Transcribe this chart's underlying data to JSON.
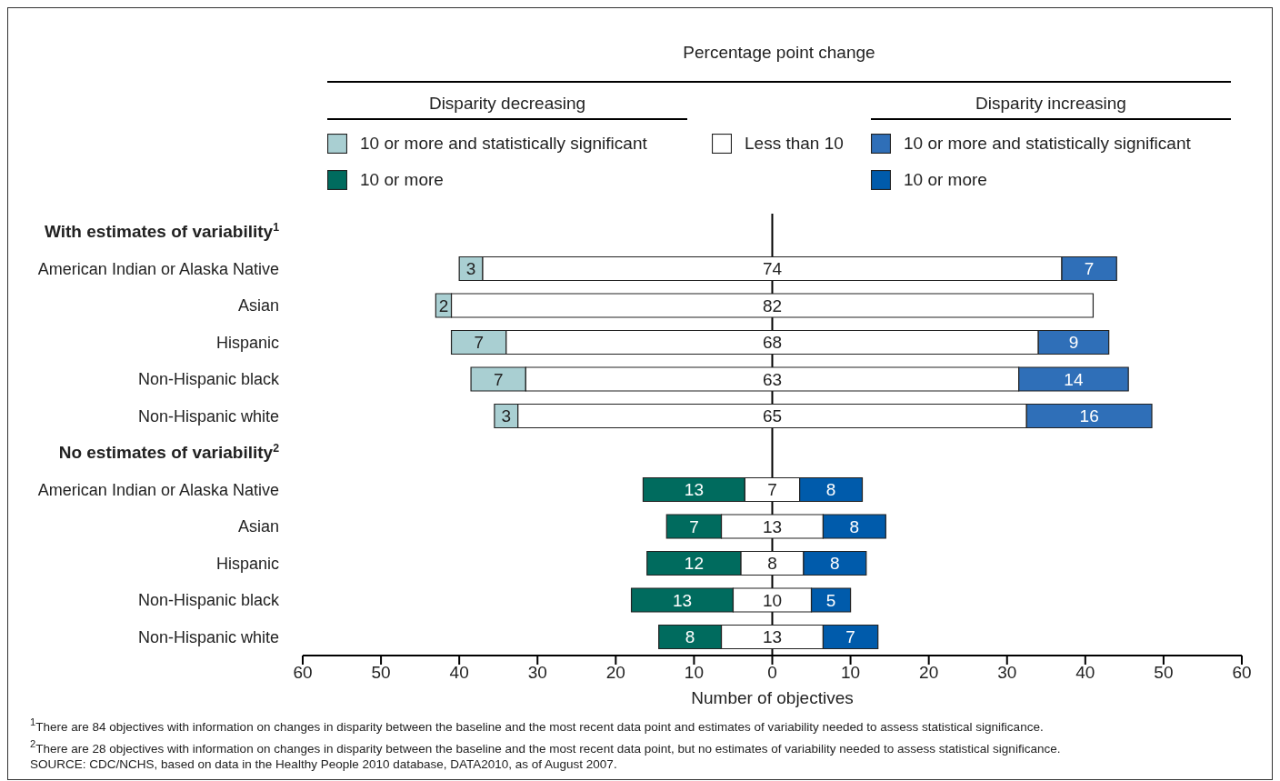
{
  "chart_data": {
    "type": "bar",
    "orientation": "horizontal",
    "legend_title": "Percentage point change",
    "legend": "top",
    "categories": [
      "With estimates of variability$^{1}$",
      "American Indian or Alaska Native",
      "Asian",
      "Hispanic",
      "Non-Hispanic black",
      "Non-Hispanic white",
      "No estimates of variability$^{2}$",
      "American Indian or Alaska Native",
      "Asian",
      "Hispanic",
      "Non-Hispanic black",
      "Non-Hispanic white"
    ],
    "series": [
      {
        "name": "10 or more and statistically significant",
        "color": "#a9cfd2",
        "values": [
          null,
          3,
          2,
          7,
          7,
          3,
          null,
          null,
          null,
          null,
          null,
          null
        ],
        "base": [
          null,
          -40,
          -43,
          -41,
          -38.5,
          -35.5,
          null,
          null,
          null,
          null,
          null,
          null
        ]
      },
      {
        "name": "10 or more",
        "color": "#006b5e",
        "values": [
          null,
          null,
          null,
          null,
          null,
          null,
          null,
          13,
          7,
          12,
          13,
          8
        ],
        "base": [
          null,
          null,
          null,
          null,
          null,
          null,
          null,
          -16.5,
          -13.5,
          -16,
          -18,
          -14.5
        ]
      },
      {
        "name": "Less than 10",
        "color": "#ffffff",
        "values": [
          null,
          74,
          82,
          68,
          63,
          65,
          null,
          7,
          13,
          8,
          10,
          13
        ],
        "base": [
          null,
          -37,
          -41,
          -34,
          -31.5,
          -32.5,
          null,
          -3.5,
          -6.5,
          -4,
          -5,
          -6.5
        ]
      },
      {
        "name": "10 or more and statistically significant",
        "color": "#2f6fb8",
        "values": [
          null,
          7,
          null,
          9,
          14,
          16,
          null,
          null,
          null,
          null,
          null,
          null
        ],
        "base": [
          null,
          37,
          null,
          34,
          31.5,
          32.5,
          null,
          null,
          null,
          null,
          null,
          null
        ]
      },
      {
        "name": "10 or more",
        "color": "#005bab",
        "values": [
          null,
          null,
          null,
          null,
          null,
          null,
          null,
          8,
          8,
          8,
          5,
          7
        ],
        "base": [
          null,
          null,
          null,
          null,
          null,
          null,
          null,
          3.5,
          6.5,
          4,
          5,
          6.5
        ]
      }
    ],
    "data_labels": true,
    "xlim": [
      -60,
      60
    ],
    "xticks": [
      {
        "value": -60,
        "label": "60"
      },
      {
        "value": -50,
        "label": "50"
      },
      {
        "value": -40,
        "label": "40"
      },
      {
        "value": -30,
        "label": "30"
      },
      {
        "value": -20,
        "label": "20"
      },
      {
        "value": -10,
        "label": "10"
      },
      0,
      10,
      20,
      30,
      40,
      50,
      60
    ],
    "xlabel": "Number of objectives",
    "ref_lines": [
      {
        "axis": "x",
        "value": 0,
        "color": "#000000"
      }
    ],
    "annotations": [
      "Disparity decreasing",
      "Disparity increasing",
      "$^{1}$There are 84 objectives with information on changes in disparity between the baseline and the most recent data point and estimates of variability needed to assess statistical significance.",
      "$^{2}$There are 28 objectives with information on changes in disparity between the baseline and the most recent data point, but no estimates of variability needed to assess statistical significance.",
      "SOURCE: CDC/NCHS, based on data in the Healthy People 2010 database, DATA2010, as of August 2007."
    ]
  }
}
